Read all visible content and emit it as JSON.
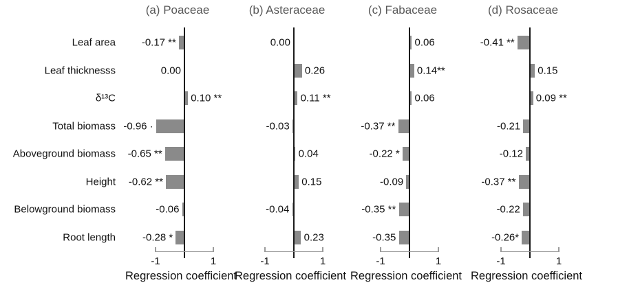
{
  "chart_data": {
    "type": "bar",
    "orientation": "horizontal",
    "title": "",
    "xlabel": "Regression coefficient",
    "xlim": [
      -1,
      1
    ],
    "xticks": [
      -1,
      1
    ],
    "xtick_labels": [
      "-1",
      "1"
    ],
    "grid": false,
    "legend": "none",
    "categories": [
      "Leaf area",
      "Leaf thicknesss",
      "δ¹³C",
      "Total biomass",
      "Aboveground biomass",
      "Height",
      "Belowground biomass",
      "Root length"
    ],
    "panels": [
      {
        "title": "(a) Poaceae",
        "values": [
          -0.17,
          0.0,
          0.1,
          -0.96,
          -0.65,
          -0.62,
          -0.06,
          -0.28
        ],
        "labels": [
          "-0.17 **",
          "0.00",
          "0.10 **",
          "-0.96 ·",
          "-0.65 **",
          "-0.62 **",
          "-0.06",
          "-0.28 *"
        ]
      },
      {
        "title": "(b) Asteraceae",
        "values": [
          0.0,
          0.26,
          0.11,
          -0.03,
          0.04,
          0.15,
          -0.04,
          0.23
        ],
        "labels": [
          "0.00",
          "0.26",
          "0.11 **",
          "-0.03",
          "0.04",
          "0.15",
          "-0.04",
          "0.23"
        ]
      },
      {
        "title": "(c) Fabaceae",
        "values": [
          0.06,
          0.14,
          0.06,
          -0.37,
          -0.22,
          -0.09,
          -0.35,
          -0.35
        ],
        "labels": [
          "0.06",
          "0.14**",
          "0.06",
          "-0.37 **",
          "-0.22 *",
          "-0.09",
          "-0.35 **",
          "-0.35"
        ]
      },
      {
        "title": "(d) Rosaceae",
        "values": [
          -0.41,
          0.15,
          0.09,
          -0.21,
          -0.12,
          -0.37,
          -0.22,
          -0.26
        ],
        "labels": [
          "-0.41 **",
          "0.15",
          "0.09 **",
          "-0.21",
          "-0.12",
          "-0.37 **",
          "-0.22",
          "-0.26*"
        ]
      }
    ],
    "colors": {
      "bar": "#8a8a8a",
      "panel_title": "#595959",
      "text": "#111111",
      "zero_line": "#1a1a1a",
      "axis_line": "#9b9b9b",
      "background": "#ffffff"
    }
  }
}
